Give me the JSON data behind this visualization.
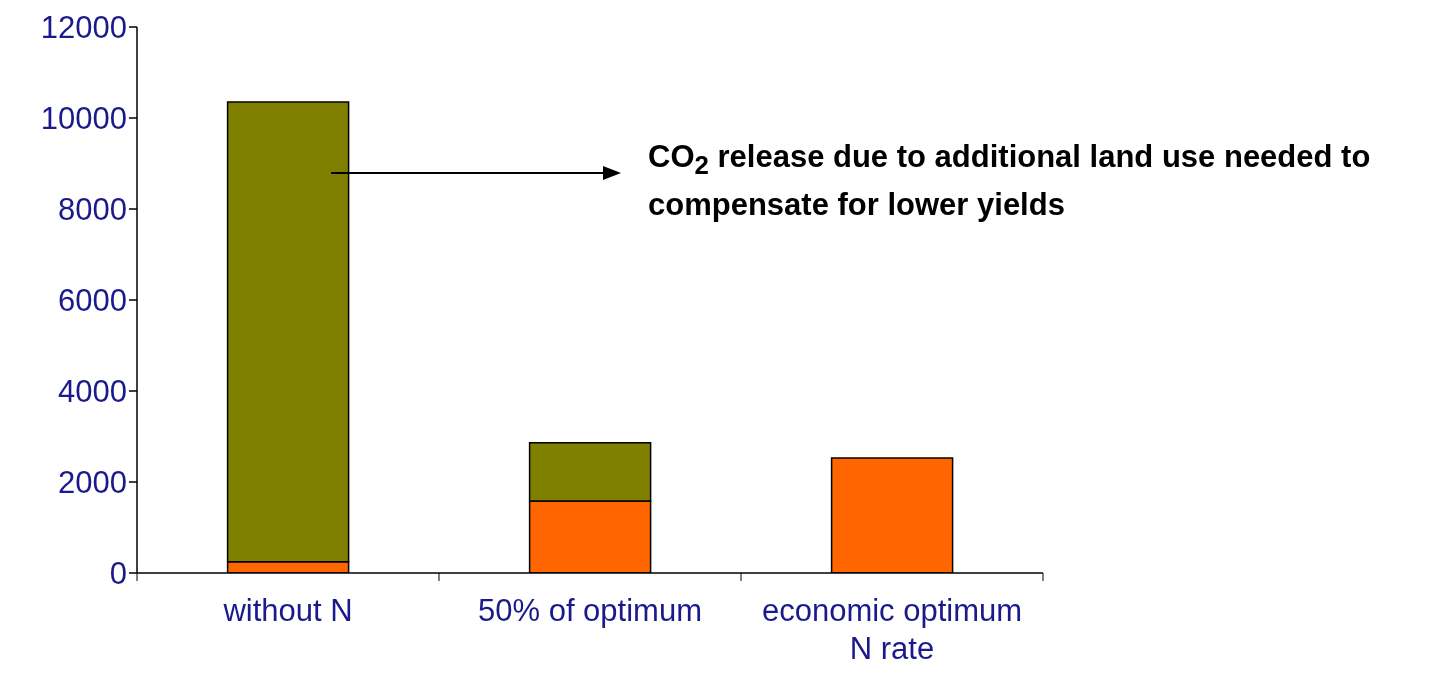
{
  "chart_data": {
    "type": "bar",
    "stacked": true,
    "categories": [
      "without N",
      "50% of optimum",
      "economic optimum N rate"
    ],
    "series": [
      {
        "color": "#ff6600",
        "values": [
          250,
          1580,
          2530
        ]
      },
      {
        "color": "#808000",
        "values": [
          10100,
          1280,
          null
        ]
      }
    ],
    "ylim": [
      0,
      12000
    ],
    "yticks": [
      0,
      2000,
      4000,
      6000,
      8000,
      10000,
      12000
    ],
    "annotations": [
      "CO$_{2}$ release due to additional land use needed to compensate for lower yields"
    ]
  }
}
